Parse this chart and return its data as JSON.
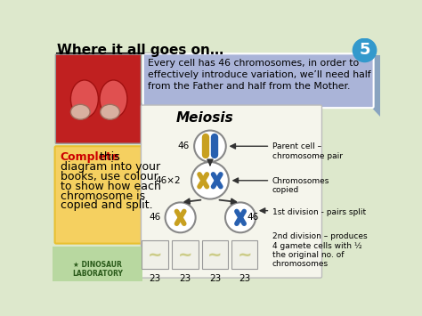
{
  "title": "Where it all goes on…",
  "slide_number": "5",
  "bg_color": "#dde8cc",
  "title_color": "#000000",
  "info_box_color": "#aab4d8",
  "info_box_text": "Every cell has 46 chromosomes, in order to\neffectively introduce variation, we’ll need half\nfrom the Father and half from the Mother.",
  "left_box_color": "#f5d060",
  "left_box_text_bold": "Complete",
  "left_box_text_rest": " this\ndiagram into your\nbooks, use colour\nto show how each\nchromosome is\ncopied and split.",
  "meiosis_title": "Meiosis",
  "meiosis_bg": "#f5f5ec",
  "label_parent_cell": "Parent cell –\nchromosome pair",
  "label_copied": "Chromosomes\ncopied",
  "label_1st_div": "1st division - pairs split",
  "label_2nd_div": "2nd division – produces\n4 gamete cells with ½\nthe original no. of\nchromosomes",
  "slide_number_bg": "#3399cc",
  "slide_number_color": "#ffffff",
  "chrom_gold": "#c8a020",
  "chrom_blue": "#2860b0",
  "circle_edge": "#888888",
  "arrow_color": "#333333"
}
